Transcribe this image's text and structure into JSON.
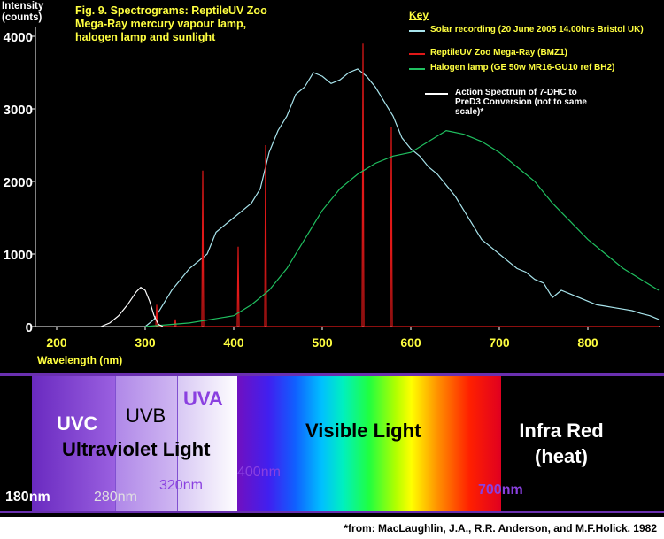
{
  "chart_data": {
    "type": "line",
    "title": "Fig. 9. Spectrograms:  ReptileUV Zoo Mega-Ray mercury vapour lamp, halogen lamp and sunlight",
    "ylabel": "Intensity (counts)",
    "xlabel": "Wavelength (nm)",
    "legend_title": "Key",
    "xlim": [
      176,
      882
    ],
    "ylim": [
      0,
      4000
    ],
    "xticks": [
      200,
      300,
      400,
      500,
      600,
      700,
      800
    ],
    "yticks": [
      0,
      1000,
      2000,
      3000,
      4000
    ],
    "series": [
      {
        "name": "Solar recording (20 June 2005 14.00hrs Bristol UK)",
        "color": "#a8e4ec",
        "x": [
          300,
          310,
          320,
          330,
          340,
          350,
          360,
          370,
          380,
          390,
          400,
          410,
          420,
          430,
          440,
          450,
          460,
          470,
          480,
          490,
          500,
          510,
          520,
          530,
          540,
          550,
          560,
          570,
          580,
          590,
          600,
          610,
          620,
          630,
          640,
          650,
          660,
          670,
          680,
          690,
          700,
          710,
          720,
          730,
          740,
          750,
          760,
          770,
          780,
          790,
          800,
          810,
          820,
          830,
          840,
          850,
          860,
          870,
          880
        ],
        "values": [
          0,
          100,
          300,
          500,
          650,
          800,
          900,
          1000,
          1300,
          1400,
          1500,
          1600,
          1700,
          1900,
          2400,
          2700,
          2900,
          3200,
          3300,
          3500,
          3450,
          3350,
          3400,
          3500,
          3550,
          3450,
          3300,
          3100,
          2900,
          2600,
          2450,
          2350,
          2200,
          2100,
          1950,
          1800,
          1600,
          1400,
          1200,
          1100,
          1000,
          900,
          800,
          750,
          650,
          600,
          400,
          500,
          450,
          400,
          350,
          300,
          280,
          260,
          240,
          220,
          180,
          150,
          100
        ]
      },
      {
        "name": "ReptileUV Zoo Mega-Ray (BMZ1)",
        "color": "#e01818",
        "x": [
          300,
          312,
          313,
          314,
          333,
          334,
          335,
          364,
          365,
          366,
          404,
          405,
          406,
          435,
          436,
          437,
          545,
          546,
          547,
          577,
          578,
          579,
          880
        ],
        "values": [
          0,
          0,
          300,
          0,
          0,
          100,
          0,
          0,
          2150,
          0,
          0,
          1100,
          0,
          0,
          2500,
          0,
          0,
          3900,
          0,
          0,
          2750,
          0,
          0
        ]
      },
      {
        "name": "Halogen lamp (GE 50w MR16-GU10 ref  BH2)",
        "color": "#20c060",
        "x": [
          300,
          350,
          400,
          420,
          440,
          460,
          480,
          500,
          520,
          540,
          560,
          580,
          600,
          620,
          640,
          660,
          680,
          700,
          720,
          740,
          760,
          780,
          800,
          820,
          840,
          860,
          880
        ],
        "values": [
          0,
          50,
          150,
          300,
          500,
          800,
          1200,
          1600,
          1900,
          2100,
          2250,
          2350,
          2400,
          2550,
          2700,
          2650,
          2550,
          2400,
          2200,
          2000,
          1700,
          1450,
          1200,
          1000,
          800,
          650,
          500
        ]
      },
      {
        "name": "Action Spectrum of 7-DHC to PreD3 Conversion (not to same scale)*",
        "color": "#ffffff",
        "x": [
          250,
          260,
          270,
          280,
          290,
          295,
          300,
          305,
          310,
          315,
          320
        ],
        "values": [
          0,
          50,
          150,
          300,
          480,
          540,
          500,
          350,
          150,
          30,
          0
        ]
      }
    ]
  },
  "spectrum_band": {
    "uvc": "UVC",
    "uvb": "UVB",
    "uva": "UVA",
    "ultraviolet": "Ultraviolet Light",
    "visible": "Visible Light",
    "infrared": "Infra Red",
    "heat": "(heat)",
    "nm180": "180nm",
    "nm280": "280nm",
    "nm320": "320nm",
    "nm400": "400nm",
    "nm700": "700nm"
  },
  "footer": "*from: MacLaughlin, J.A., R.R. Anderson, and M.F.Holick. 1982"
}
